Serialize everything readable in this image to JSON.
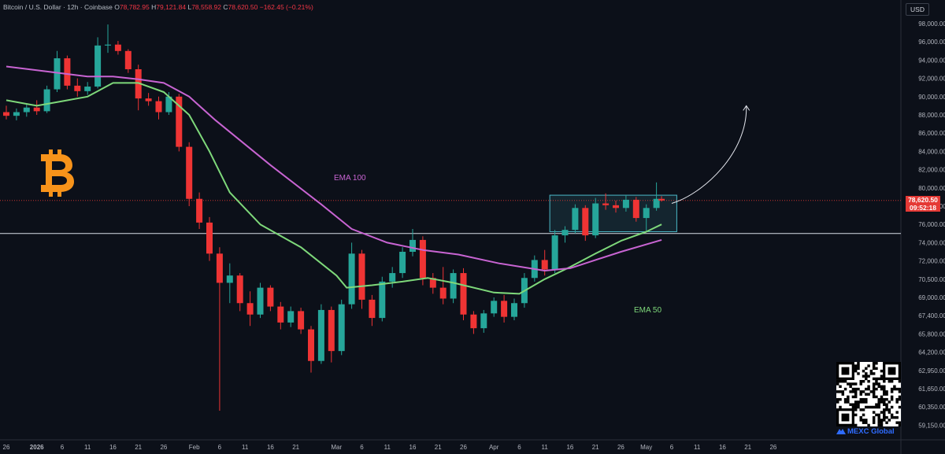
{
  "header": {
    "symbol": "Bitcoin / U.S. Dollar · 12h · Coinbase",
    "open_label": "O",
    "open": "78,782.95",
    "high_label": "H",
    "high": "79,121.84",
    "low_label": "L",
    "low": "78,558.92",
    "close_label": "C",
    "close": "78,620.50",
    "change": "−162.45 (−0.21%)"
  },
  "currency": "USD",
  "price_tag": {
    "value": "78,620.50",
    "countdown": "09:52:18"
  },
  "brand": {
    "exchange": "MEXC Global"
  },
  "colors": {
    "background": "#0c1019",
    "up_candle": "#26a69a",
    "down_candle": "#ef3434",
    "ema50": "#7ed87a",
    "ema100": "#c864d2",
    "box": "#4bb8c8",
    "last_price_line": "#e53935",
    "support_line": "#d8dde8",
    "btc_logo": "#f7931a",
    "brand": "#2f6cff"
  },
  "chart_data": {
    "type": "candlestick",
    "title": "Bitcoin / U.S. Dollar · 12h · Coinbase",
    "yaxis_ticks": [
      98000,
      96000,
      94000,
      92000,
      90000,
      88000,
      86000,
      84000,
      82000,
      80000,
      78000,
      76000,
      74000,
      72000,
      70500,
      69000,
      67400,
      65800,
      64200,
      62950,
      61650,
      60350,
      59150
    ],
    "xaxis_ticks": [
      "26",
      "2026",
      "6",
      "11",
      "16",
      "21",
      "26",
      "Feb",
      "6",
      "11",
      "16",
      "21",
      "Mar",
      "6",
      "11",
      "16",
      "21",
      "26",
      "Apr",
      "6",
      "11",
      "16",
      "21",
      "26",
      "May",
      "6",
      "11",
      "16",
      "21",
      "26"
    ],
    "last_price": 78620.5,
    "support_level": 75000,
    "range_box": {
      "from": "Apr 12",
      "to": "May 7",
      "low": 75200,
      "high": 79200
    },
    "projection": {
      "from_price": 78300,
      "to_price": 89000
    },
    "series": [
      {
        "name": "EMA 50",
        "points": [
          [
            "Dec 26",
            89600
          ],
          [
            "Jan 1",
            89000
          ],
          [
            "Jan 6",
            89500
          ],
          [
            "Jan 11",
            90000
          ],
          [
            "Jan 16",
            91500
          ],
          [
            "Jan 21",
            91500
          ],
          [
            "Jan 26",
            90500
          ],
          [
            "Jan 31",
            88000
          ],
          [
            "Feb 4",
            84000
          ],
          [
            "Feb 8",
            79500
          ],
          [
            "Feb 14",
            76000
          ],
          [
            "Feb 22",
            73500
          ],
          [
            "Mar 1",
            70800
          ],
          [
            "Mar 3",
            69800
          ],
          [
            "Mar 8",
            70000
          ],
          [
            "Mar 14",
            70300
          ],
          [
            "Mar 19",
            70600
          ],
          [
            "Mar 24",
            70200
          ],
          [
            "Apr 1",
            69400
          ],
          [
            "Apr 6",
            69300
          ],
          [
            "Apr 11",
            70500
          ],
          [
            "Apr 16",
            71500
          ],
          [
            "Apr 21",
            72800
          ],
          [
            "Apr 26",
            74200
          ],
          [
            "May 1",
            75200
          ],
          [
            "May 4",
            76000
          ]
        ]
      },
      {
        "name": "EMA 100",
        "points": [
          [
            "Dec 26",
            93300
          ],
          [
            "Jan 1",
            92900
          ],
          [
            "Jan 11",
            92200
          ],
          [
            "Jan 16",
            92200
          ],
          [
            "Jan 21",
            91900
          ],
          [
            "Jan 26",
            91500
          ],
          [
            "Jan 31",
            90000
          ],
          [
            "Feb 5",
            87500
          ],
          [
            "Feb 16",
            82500
          ],
          [
            "Feb 26",
            78200
          ],
          [
            "Mar 4",
            75500
          ],
          [
            "Mar 11",
            74000
          ],
          [
            "Mar 18",
            73200
          ],
          [
            "Mar 25",
            72700
          ],
          [
            "Apr 2",
            71800
          ],
          [
            "Apr 11",
            71200
          ],
          [
            "Apr 16",
            71400
          ],
          [
            "Apr 21",
            72100
          ],
          [
            "Apr 26",
            73000
          ],
          [
            "May 4",
            74300
          ]
        ]
      }
    ],
    "candles": [
      {
        "t": "Dec 26",
        "o": 88300,
        "h": 89000,
        "l": 87500,
        "c": 87900
      },
      {
        "t": "Dec 28",
        "o": 87900,
        "h": 88700,
        "l": 87400,
        "c": 88300
      },
      {
        "t": "Dec 30",
        "o": 88300,
        "h": 89200,
        "l": 87800,
        "c": 88800
      },
      {
        "t": "Jan 1",
        "o": 88800,
        "h": 89600,
        "l": 88000,
        "c": 88400
      },
      {
        "t": "Jan 3",
        "o": 88400,
        "h": 91200,
        "l": 88200,
        "c": 90800
      },
      {
        "t": "Jan 5",
        "o": 90800,
        "h": 95000,
        "l": 90500,
        "c": 94200
      },
      {
        "t": "Jan 7",
        "o": 94200,
        "h": 94500,
        "l": 90800,
        "c": 91200
      },
      {
        "t": "Jan 9",
        "o": 91200,
        "h": 92000,
        "l": 90000,
        "c": 90600
      },
      {
        "t": "Jan 11",
        "o": 90600,
        "h": 91600,
        "l": 90200,
        "c": 91100
      },
      {
        "t": "Jan 13",
        "o": 91100,
        "h": 96500,
        "l": 90900,
        "c": 95600
      },
      {
        "t": "Jan 15",
        "o": 95600,
        "h": 97900,
        "l": 94800,
        "c": 95700
      },
      {
        "t": "Jan 17",
        "o": 95700,
        "h": 96100,
        "l": 94600,
        "c": 95000
      },
      {
        "t": "Jan 19",
        "o": 95000,
        "h": 95200,
        "l": 92600,
        "c": 93000
      },
      {
        "t": "Jan 21",
        "o": 93000,
        "h": 93500,
        "l": 88500,
        "c": 89800
      },
      {
        "t": "Jan 23",
        "o": 89800,
        "h": 90400,
        "l": 89000,
        "c": 89500
      },
      {
        "t": "Jan 25",
        "o": 89500,
        "h": 90000,
        "l": 87500,
        "c": 88300
      },
      {
        "t": "Jan 27",
        "o": 88300,
        "h": 90500,
        "l": 88000,
        "c": 90000
      },
      {
        "t": "Jan 29",
        "o": 90000,
        "h": 90300,
        "l": 84000,
        "c": 84500
      },
      {
        "t": "Jan 31",
        "o": 84500,
        "h": 85000,
        "l": 78000,
        "c": 78800
      },
      {
        "t": "Feb 2",
        "o": 78800,
        "h": 79500,
        "l": 75500,
        "c": 76200
      },
      {
        "t": "Feb 4",
        "o": 76200,
        "h": 76800,
        "l": 72000,
        "c": 72800
      },
      {
        "t": "Feb 6",
        "o": 72800,
        "h": 73500,
        "l": 60100,
        "c": 70200
      },
      {
        "t": "Feb 8",
        "o": 70200,
        "h": 71800,
        "l": 68500,
        "c": 70800
      },
      {
        "t": "Feb 10",
        "o": 70800,
        "h": 71000,
        "l": 67800,
        "c": 68500
      },
      {
        "t": "Feb 12",
        "o": 68500,
        "h": 69500,
        "l": 66500,
        "c": 67500
      },
      {
        "t": "Feb 14",
        "o": 67500,
        "h": 70200,
        "l": 67200,
        "c": 69800
      },
      {
        "t": "Feb 16",
        "o": 69800,
        "h": 70000,
        "l": 67800,
        "c": 68200
      },
      {
        "t": "Feb 18",
        "o": 68200,
        "h": 68600,
        "l": 66200,
        "c": 66800
      },
      {
        "t": "Feb 20",
        "o": 66800,
        "h": 68200,
        "l": 66400,
        "c": 67800
      },
      {
        "t": "Feb 22",
        "o": 67800,
        "h": 68100,
        "l": 65800,
        "c": 66200
      },
      {
        "t": "Feb 24",
        "o": 66200,
        "h": 66500,
        "l": 62800,
        "c": 63600
      },
      {
        "t": "Feb 26",
        "o": 63600,
        "h": 68400,
        "l": 63400,
        "c": 67900
      },
      {
        "t": "Feb 28",
        "o": 67900,
        "h": 68200,
        "l": 63500,
        "c": 64300
      },
      {
        "t": "Mar 2",
        "o": 64300,
        "h": 68800,
        "l": 64000,
        "c": 68400
      },
      {
        "t": "Mar 4",
        "o": 68400,
        "h": 74000,
        "l": 68000,
        "c": 72800
      },
      {
        "t": "Mar 6",
        "o": 72800,
        "h": 73200,
        "l": 68000,
        "c": 68800
      },
      {
        "t": "Mar 8",
        "o": 68800,
        "h": 69200,
        "l": 66500,
        "c": 67200
      },
      {
        "t": "Mar 10",
        "o": 67200,
        "h": 70700,
        "l": 66900,
        "c": 70300
      },
      {
        "t": "Mar 12",
        "o": 70300,
        "h": 71500,
        "l": 69800,
        "c": 71000
      },
      {
        "t": "Mar 14",
        "o": 71000,
        "h": 73500,
        "l": 70600,
        "c": 73000
      },
      {
        "t": "Mar 16",
        "o": 73000,
        "h": 75500,
        "l": 72500,
        "c": 74300
      },
      {
        "t": "Mar 18",
        "o": 74300,
        "h": 74700,
        "l": 70000,
        "c": 70600
      },
      {
        "t": "Mar 20",
        "o": 70600,
        "h": 71000,
        "l": 69300,
        "c": 69800
      },
      {
        "t": "Mar 22",
        "o": 69800,
        "h": 71500,
        "l": 68400,
        "c": 68900
      },
      {
        "t": "Mar 24",
        "o": 68900,
        "h": 71300,
        "l": 68500,
        "c": 71000
      },
      {
        "t": "Mar 26",
        "o": 71000,
        "h": 71400,
        "l": 67000,
        "c": 67500
      },
      {
        "t": "Mar 28",
        "o": 67500,
        "h": 67800,
        "l": 65800,
        "c": 66300
      },
      {
        "t": "Mar 30",
        "o": 66300,
        "h": 67900,
        "l": 65900,
        "c": 67600
      },
      {
        "t": "Apr 1",
        "o": 67600,
        "h": 69000,
        "l": 67300,
        "c": 68700
      },
      {
        "t": "Apr 3",
        "o": 68700,
        "h": 69200,
        "l": 66800,
        "c": 67300
      },
      {
        "t": "Apr 5",
        "o": 67300,
        "h": 68900,
        "l": 67000,
        "c": 68500
      },
      {
        "t": "Apr 7",
        "o": 68500,
        "h": 71000,
        "l": 68100,
        "c": 70600
      },
      {
        "t": "Apr 9",
        "o": 70600,
        "h": 72600,
        "l": 70300,
        "c": 72100
      },
      {
        "t": "Apr 11",
        "o": 72100,
        "h": 73200,
        "l": 70800,
        "c": 71300
      },
      {
        "t": "Apr 13",
        "o": 71300,
        "h": 75400,
        "l": 71000,
        "c": 74800
      },
      {
        "t": "Apr 15",
        "o": 74800,
        "h": 75800,
        "l": 74000,
        "c": 75400
      },
      {
        "t": "Apr 17",
        "o": 75400,
        "h": 78200,
        "l": 75000,
        "c": 77800
      },
      {
        "t": "Apr 19",
        "o": 77800,
        "h": 78100,
        "l": 74200,
        "c": 74800
      },
      {
        "t": "Apr 21",
        "o": 74800,
        "h": 78900,
        "l": 74500,
        "c": 78300
      },
      {
        "t": "Apr 23",
        "o": 78300,
        "h": 79400,
        "l": 77600,
        "c": 78100
      },
      {
        "t": "Apr 25",
        "o": 78100,
        "h": 78600,
        "l": 77300,
        "c": 77800
      },
      {
        "t": "Apr 27",
        "o": 77800,
        "h": 79200,
        "l": 77400,
        "c": 78700
      },
      {
        "t": "Apr 29",
        "o": 78700,
        "h": 79000,
        "l": 76300,
        "c": 76700
      },
      {
        "t": "May 1",
        "o": 76700,
        "h": 78200,
        "l": 75300,
        "c": 77800
      },
      {
        "t": "May 3",
        "o": 77800,
        "h": 80600,
        "l": 77500,
        "c": 78800
      },
      {
        "t": "May 4",
        "o": 78800,
        "h": 79100,
        "l": 78500,
        "c": 78620
      }
    ]
  },
  "labels": {
    "ema100": "EMA 100",
    "ema50": "EMA 50"
  }
}
